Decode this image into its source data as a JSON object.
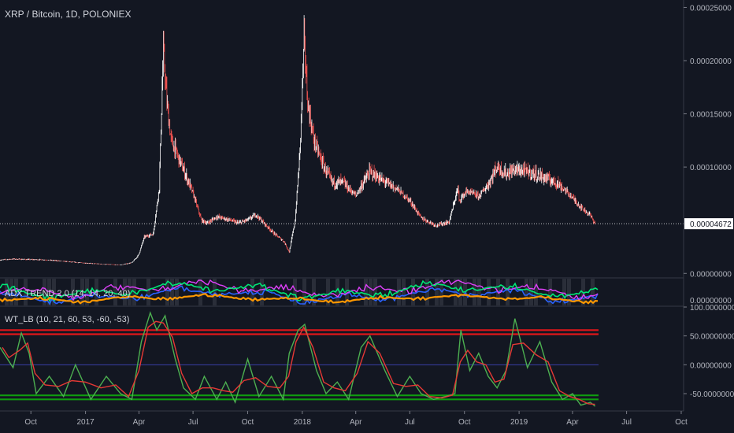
{
  "header": {
    "main_title": "XRP / Bitcoin, 1D, POLONIEX",
    "adx_title": "ADX TREND 2.0 (14, 14, 20, 40)",
    "wt_title": "WT_LB (10, 21, 60, 53, -60, -53)"
  },
  "colors": {
    "background": "#131722",
    "up_candle": "#ffffff",
    "down_candle": "#ef5350",
    "ob_line": "#e0161a",
    "os_line": "#0f9d0f",
    "zero_line": "#3a3fa8",
    "wt1": "#4caf50",
    "wt2": "#e53935",
    "adx_orange": "#ff9800",
    "adx_blue": "#2962ff",
    "adx_green": "#00e676",
    "adx_magenta": "#e040fb"
  },
  "chart_data": [
    {
      "type": "line",
      "name": "price",
      "title": "XRP / Bitcoin, 1D, POLONIEX",
      "x": [
        "2016-08-10",
        "2016-09-01",
        "2016-09-25",
        "2016-10-20",
        "2016-11-15",
        "2016-12-10",
        "2017-01-05",
        "2017-02-01",
        "2017-03-01",
        "2017-03-20",
        "2017-03-31",
        "2017-04-10",
        "2017-04-25",
        "2017-05-05",
        "2017-05-12",
        "2017-05-18",
        "2017-05-25",
        "2017-06-05",
        "2017-06-20",
        "2017-07-01",
        "2017-07-15",
        "2017-07-25",
        "2017-08-10",
        "2017-09-01",
        "2017-09-15",
        "2017-10-01",
        "2017-10-15",
        "2017-11-01",
        "2017-11-15",
        "2017-12-01",
        "2017-12-10",
        "2017-12-20",
        "2017-12-28",
        "2018-01-04",
        "2018-01-10",
        "2018-01-20",
        "2018-02-06",
        "2018-02-20",
        "2018-03-10",
        "2018-04-01",
        "2018-04-25",
        "2018-05-15",
        "2018-06-10",
        "2018-07-01",
        "2018-07-20",
        "2018-08-14",
        "2018-09-05",
        "2018-09-20",
        "2018-09-22",
        "2018-10-05",
        "2018-10-25",
        "2018-11-10",
        "2018-11-25",
        "2018-12-10",
        "2018-12-25",
        "2019-01-15",
        "2019-02-10",
        "2019-03-05",
        "2019-03-25",
        "2019-04-15",
        "2019-04-30",
        "2019-05-09"
      ],
      "values": [
        1.25e-05,
        1.35e-05,
        1.3e-05,
        1.28e-05,
        1.18e-05,
        1.05e-05,
        9.5e-06,
        8.5e-06,
        7.8e-06,
        1e-05,
        1.7e-05,
        3.4e-05,
        3.7e-05,
        8e-05,
        0.00021,
        0.00016,
        0.000125,
        0.00011,
        9e-05,
        7.5e-05,
        5e-05,
        4.7e-05,
        5.3e-05,
        5e-05,
        4.7e-05,
        5e-05,
        5.5e-05,
        4.5e-05,
        3.7e-05,
        3e-05,
        2e-05,
        5e-05,
        0.000115,
        0.00022,
        0.00016,
        0.000125,
        0.0001,
        8.5e-05,
        8.5e-05,
        7.3e-05,
        9.5e-05,
        8.7e-05,
        7.9e-05,
        6.8e-05,
        5.2e-05,
        4.5e-05,
        4.8e-05,
        8e-05,
        6.8e-05,
        7.7e-05,
        7.2e-05,
        8.3e-05,
        0.0001,
        9.3e-05,
        9.7e-05,
        9.5e-05,
        9e-05,
        8.5e-05,
        7.5e-05,
        6.2e-05,
        5.5e-05,
        4.672e-05
      ],
      "ylim": [
        -3.5e-06,
        0.000257
      ],
      "y_ticks": [
        "0.00025000",
        "0.00020000",
        "0.00015000",
        "0.00010000",
        "0.00004672",
        "0.00000000"
      ],
      "y_tick_values": [
        0.00025,
        0.0002,
        0.00015,
        0.0001,
        4.672e-05,
        0
      ],
      "last_price": "0.00004672"
    },
    {
      "type": "line",
      "name": "adx",
      "title": "ADX TREND 2.0 (14, 14, 20, 40)",
      "y_ticks": [
        "0.00000000"
      ]
    },
    {
      "type": "line",
      "name": "wt",
      "title": "WT_LB (10, 21, 60, 53, -60, -53)",
      "levels": [
        60,
        53,
        0,
        -53,
        -60
      ],
      "ylim": [
        -80,
        100
      ],
      "y_ticks": [
        "100.00000000",
        "50.00000000",
        "0.00000000",
        "-50.00000000"
      ],
      "y_tick_values": [
        100,
        50,
        0,
        -50
      ],
      "x": [
        "2016-08-10",
        "2016-09-01",
        "2016-09-15",
        "2016-09-28",
        "2016-10-10",
        "2016-11-01",
        "2016-11-25",
        "2016-12-15",
        "2017-01-10",
        "2017-02-05",
        "2017-03-01",
        "2017-03-20",
        "2017-04-05",
        "2017-04-20",
        "2017-05-01",
        "2017-05-15",
        "2017-06-01",
        "2017-06-15",
        "2017-07-05",
        "2017-07-20",
        "2017-08-10",
        "2017-08-25",
        "2017-09-10",
        "2017-10-01",
        "2017-10-20",
        "2017-11-10",
        "2017-11-30",
        "2017-12-10",
        "2017-12-25",
        "2018-01-05",
        "2018-01-25",
        "2018-02-10",
        "2018-03-01",
        "2018-03-20",
        "2018-04-10",
        "2018-04-25",
        "2018-05-20",
        "2018-06-10",
        "2018-07-01",
        "2018-07-20",
        "2018-08-10",
        "2018-08-30",
        "2018-09-15",
        "2018-09-25",
        "2018-10-10",
        "2018-10-25",
        "2018-11-10",
        "2018-11-25",
        "2018-12-10",
        "2018-12-25",
        "2019-01-15",
        "2019-02-05",
        "2019-02-25",
        "2019-03-15",
        "2019-04-01",
        "2019-04-15",
        "2019-05-01",
        "2019-05-09"
      ],
      "values": [
        30,
        -5,
        55,
        20,
        -50,
        -20,
        -55,
        0,
        -60,
        -20,
        -50,
        -60,
        40,
        90,
        60,
        85,
        10,
        -40,
        -60,
        -20,
        -60,
        -30,
        -65,
        10,
        -55,
        -20,
        -60,
        20,
        60,
        70,
        -10,
        -50,
        -30,
        -60,
        30,
        50,
        -10,
        -55,
        -20,
        -50,
        -60,
        -55,
        -50,
        60,
        -10,
        20,
        -20,
        -40,
        -10,
        80,
        -5,
        40,
        -30,
        -60,
        -50,
        -70,
        -65,
        -72
      ]
    }
  ],
  "x_axis": {
    "labels": [
      "Oct",
      "2017",
      "Apr",
      "Jul",
      "Oct",
      "2018",
      "Apr",
      "Jul",
      "Oct",
      "2019",
      "Apr",
      "Jul",
      "Oct"
    ],
    "dates": [
      "2016-10-01",
      "2017-01-01",
      "2017-04-01",
      "2017-07-01",
      "2017-10-01",
      "2018-01-01",
      "2018-04-01",
      "2018-07-01",
      "2018-10-01",
      "2019-01-01",
      "2019-04-01",
      "2019-07-01",
      "2019-10-01"
    ]
  }
}
